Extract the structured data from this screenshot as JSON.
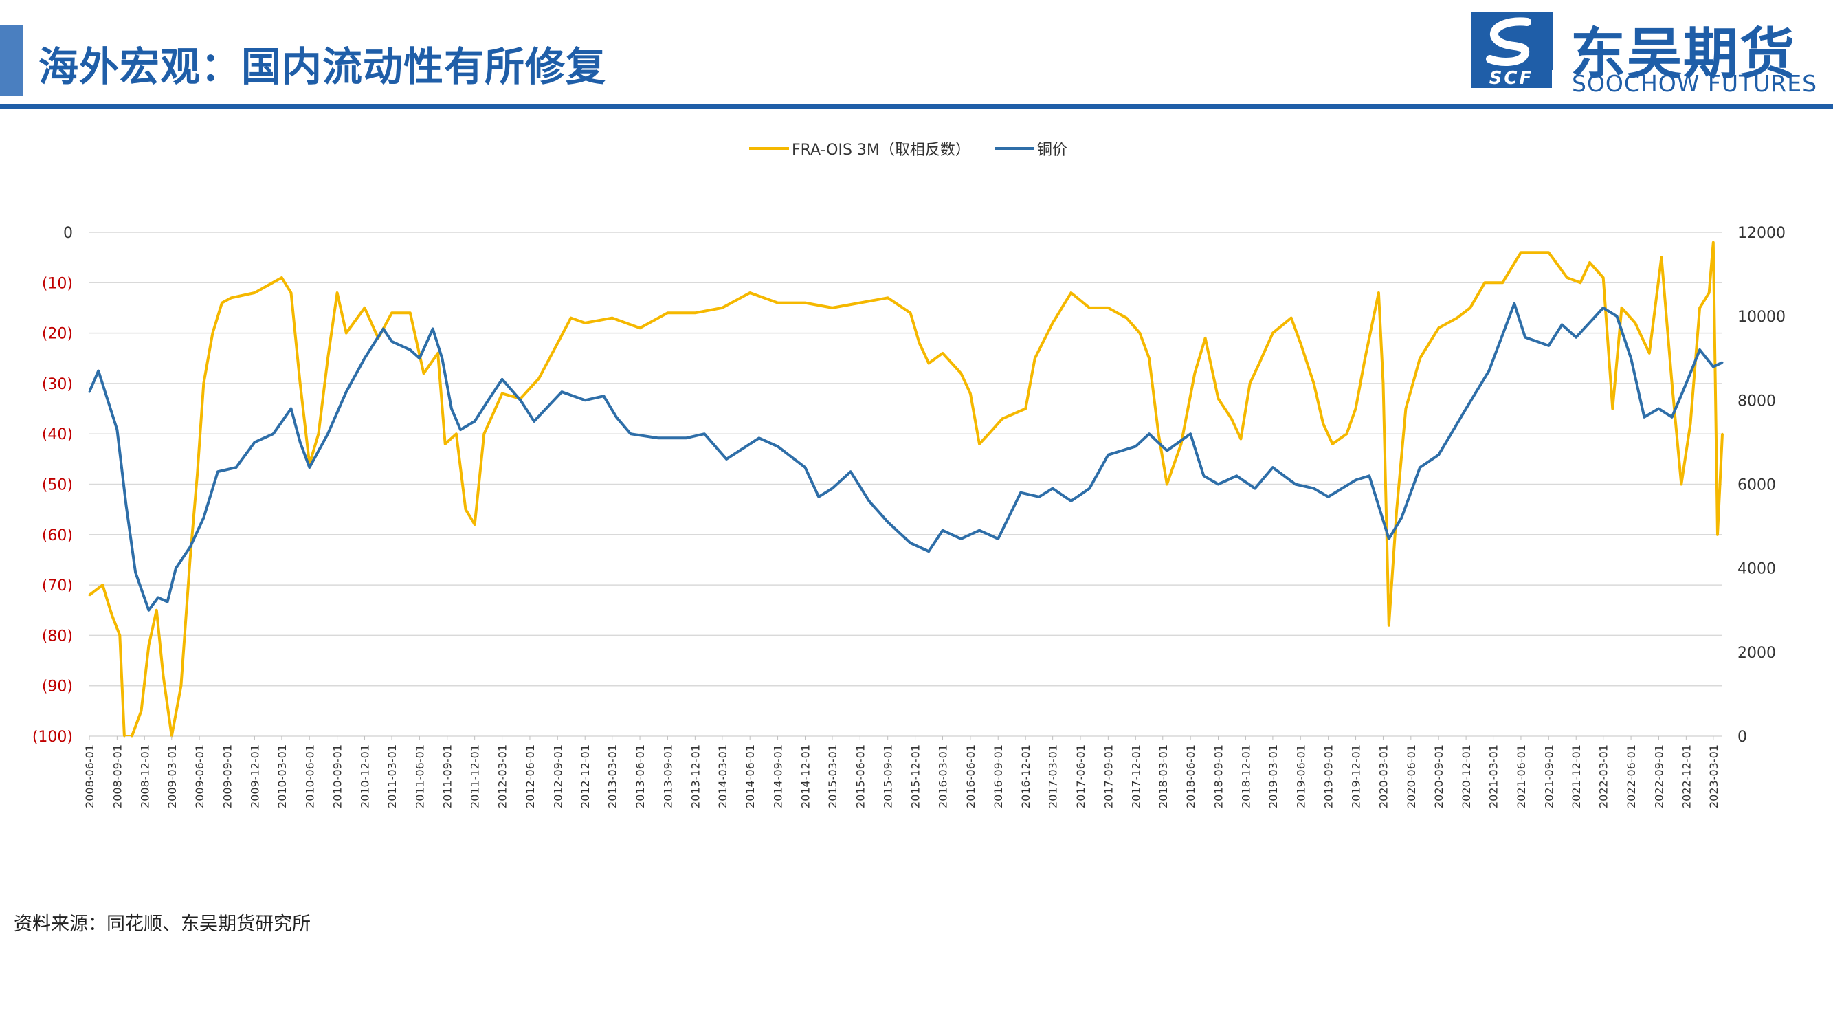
{
  "header": {
    "title": "海外宏观：国内流动性有所修复",
    "logo_cn": "东吴期货",
    "logo_en": "SOOCHOW FUTURES",
    "logo_abbr": "SCF"
  },
  "colors": {
    "brand": "#1f5ea8",
    "fra_series": "#f5b800",
    "copper_series": "#2e6ea8",
    "left_axis_text": "#c00000",
    "gridline": "#d9d9d9"
  },
  "legend": {
    "fra_label": "FRA-OIS 3M（取相反数）",
    "copper_label": "铜价"
  },
  "source": "资料来源：同花顺、东吴期货研究所",
  "chart_data": {
    "type": "line",
    "grid": true,
    "legend_position": "top",
    "x_range": [
      "2008-06-01",
      "2023-03-31"
    ],
    "x_tick_labels": [
      "2008-06-01",
      "2008-09-01",
      "2008-12-01",
      "2009-03-01",
      "2009-06-01",
      "2009-09-01",
      "2009-12-01",
      "2010-03-01",
      "2010-06-01",
      "2010-09-01",
      "2010-12-01",
      "2011-03-01",
      "2011-06-01",
      "2011-09-01",
      "2011-12-01",
      "2012-03-01",
      "2012-06-01",
      "2012-09-01",
      "2012-12-01",
      "2013-03-01",
      "2013-06-01",
      "2013-09-01",
      "2013-12-01",
      "2014-03-01",
      "2014-06-01",
      "2014-09-01",
      "2014-12-01",
      "2015-03-01",
      "2015-06-01",
      "2015-09-01",
      "2015-12-01",
      "2016-03-01",
      "2016-06-01",
      "2016-09-01",
      "2016-12-01",
      "2017-03-01",
      "2017-06-01",
      "2017-09-01",
      "2017-12-01",
      "2018-03-01",
      "2018-06-01",
      "2018-09-01",
      "2018-12-01",
      "2019-03-01",
      "2019-06-01",
      "2019-09-01",
      "2019-12-01",
      "2020-03-01",
      "2020-06-01",
      "2020-09-01",
      "2020-12-01",
      "2021-03-01",
      "2021-06-01",
      "2021-09-01",
      "2021-12-01",
      "2022-03-01",
      "2022-06-01",
      "2022-09-01",
      "2022-12-01",
      "2023-03-01"
    ],
    "y_left": {
      "min": -100,
      "max": 0,
      "tick_labels": [
        "0",
        "(10)",
        "(20)",
        "(30)",
        "(40)",
        "(50)",
        "(60)",
        "(70)",
        "(80)",
        "(90)",
        "(100)"
      ]
    },
    "y_right": {
      "min": 0,
      "max": 12000,
      "tick_labels": [
        "12000",
        "10000",
        "8000",
        "6000",
        "4000",
        "2000",
        "0"
      ]
    },
    "series": [
      {
        "name": "FRA-OIS 3M（取相反数）",
        "axis": "left",
        "points": [
          [
            "2008-06-01",
            -72
          ],
          [
            "2008-07-15",
            -70
          ],
          [
            "2008-08-15",
            -76
          ],
          [
            "2008-09-10",
            -80
          ],
          [
            "2008-09-25",
            -100
          ],
          [
            "2008-10-20",
            -100
          ],
          [
            "2008-11-20",
            -95
          ],
          [
            "2008-12-15",
            -82
          ],
          [
            "2009-01-10",
            -75
          ],
          [
            "2009-02-01",
            -88
          ],
          [
            "2009-03-01",
            -100
          ],
          [
            "2009-04-01",
            -90
          ],
          [
            "2009-05-01",
            -65
          ],
          [
            "2009-05-25",
            -48
          ],
          [
            "2009-06-15",
            -30
          ],
          [
            "2009-07-15",
            -20
          ],
          [
            "2009-08-15",
            -14
          ],
          [
            "2009-09-15",
            -13
          ],
          [
            "2009-12-01",
            -12
          ],
          [
            "2010-03-01",
            -9
          ],
          [
            "2010-04-01",
            -12
          ],
          [
            "2010-05-01",
            -30
          ],
          [
            "2010-06-01",
            -46
          ],
          [
            "2010-07-01",
            -40
          ],
          [
            "2010-08-01",
            -25
          ],
          [
            "2010-09-01",
            -12
          ],
          [
            "2010-10-01",
            -20
          ],
          [
            "2010-12-01",
            -15
          ],
          [
            "2011-01-15",
            -21
          ],
          [
            "2011-03-01",
            -16
          ],
          [
            "2011-05-01",
            -16
          ],
          [
            "2011-06-15",
            -28
          ],
          [
            "2011-08-01",
            -24
          ],
          [
            "2011-08-25",
            -42
          ],
          [
            "2011-10-01",
            -40
          ],
          [
            "2011-11-01",
            -55
          ],
          [
            "2011-12-01",
            -58
          ],
          [
            "2012-01-01",
            -40
          ],
          [
            "2012-03-01",
            -32
          ],
          [
            "2012-05-01",
            -33
          ],
          [
            "2012-07-01",
            -29
          ],
          [
            "2012-09-01",
            -22
          ],
          [
            "2012-10-15",
            -17
          ],
          [
            "2012-12-01",
            -18
          ],
          [
            "2013-03-01",
            -17
          ],
          [
            "2013-06-01",
            -19
          ],
          [
            "2013-09-01",
            -16
          ],
          [
            "2013-12-01",
            -16
          ],
          [
            "2014-03-01",
            -15
          ],
          [
            "2014-06-01",
            -12
          ],
          [
            "2014-09-01",
            -14
          ],
          [
            "2014-12-01",
            -14
          ],
          [
            "2015-03-01",
            -15
          ],
          [
            "2015-06-01",
            -14
          ],
          [
            "2015-09-01",
            -13
          ],
          [
            "2015-11-15",
            -16
          ],
          [
            "2015-12-15",
            -22
          ],
          [
            "2016-01-15",
            -26
          ],
          [
            "2016-03-01",
            -24
          ],
          [
            "2016-05-01",
            -28
          ],
          [
            "2016-06-01",
            -32
          ],
          [
            "2016-07-01",
            -42
          ],
          [
            "2016-08-01",
            -40
          ],
          [
            "2016-09-15",
            -37
          ],
          [
            "2016-12-01",
            -35
          ],
          [
            "2017-01-01",
            -25
          ],
          [
            "2017-03-01",
            -18
          ],
          [
            "2017-05-01",
            -12
          ],
          [
            "2017-07-01",
            -15
          ],
          [
            "2017-09-01",
            -15
          ],
          [
            "2017-11-01",
            -17
          ],
          [
            "2017-12-15",
            -20
          ],
          [
            "2018-01-15",
            -25
          ],
          [
            "2018-02-15",
            -40
          ],
          [
            "2018-03-15",
            -50
          ],
          [
            "2018-05-01",
            -42
          ],
          [
            "2018-06-15",
            -28
          ],
          [
            "2018-07-20",
            -21
          ],
          [
            "2018-09-01",
            -33
          ],
          [
            "2018-10-15",
            -37
          ],
          [
            "2018-11-15",
            -41
          ],
          [
            "2018-12-15",
            -30
          ],
          [
            "2019-01-15",
            -26
          ],
          [
            "2019-03-01",
            -20
          ],
          [
            "2019-05-01",
            -17
          ],
          [
            "2019-06-01",
            -22
          ],
          [
            "2019-07-15",
            -30
          ],
          [
            "2019-08-15",
            -38
          ],
          [
            "2019-09-15",
            -42
          ],
          [
            "2019-11-01",
            -40
          ],
          [
            "2019-12-01",
            -35
          ],
          [
            "2020-01-01",
            -25
          ],
          [
            "2020-02-15",
            -12
          ],
          [
            "2020-03-01",
            -30
          ],
          [
            "2020-03-20",
            -78
          ],
          [
            "2020-04-15",
            -55
          ],
          [
            "2020-05-15",
            -35
          ],
          [
            "2020-07-01",
            -25
          ],
          [
            "2020-09-01",
            -19
          ],
          [
            "2020-11-01",
            -17
          ],
          [
            "2020-12-15",
            -15
          ],
          [
            "2021-02-01",
            -10
          ],
          [
            "2021-04-01",
            -10
          ],
          [
            "2021-06-01",
            -4
          ],
          [
            "2021-09-01",
            -4
          ],
          [
            "2021-11-01",
            -9
          ],
          [
            "2021-12-15",
            -10
          ],
          [
            "2022-01-15",
            -6
          ],
          [
            "2022-03-01",
            -9
          ],
          [
            "2022-04-01",
            -35
          ],
          [
            "2022-05-01",
            -15
          ],
          [
            "2022-06-15",
            -18
          ],
          [
            "2022-08-01",
            -24
          ],
          [
            "2022-09-10",
            -5
          ],
          [
            "2022-10-15",
            -30
          ],
          [
            "2022-11-15",
            -50
          ],
          [
            "2022-12-15",
            -38
          ],
          [
            "2023-01-15",
            -15
          ],
          [
            "2023-02-15",
            -12
          ],
          [
            "2023-03-01",
            -2
          ],
          [
            "2023-03-15",
            -60
          ],
          [
            "2023-03-31",
            -40
          ]
        ]
      },
      {
        "name": "铜价",
        "axis": "right",
        "points": [
          [
            "2008-06-01",
            8200
          ],
          [
            "2008-07-01",
            8700
          ],
          [
            "2008-08-01",
            8000
          ],
          [
            "2008-09-01",
            7300
          ],
          [
            "2008-10-01",
            5500
          ],
          [
            "2008-11-01",
            3900
          ],
          [
            "2008-12-15",
            3000
          ],
          [
            "2009-01-15",
            3300
          ],
          [
            "2009-02-15",
            3200
          ],
          [
            "2009-03-15",
            4000
          ],
          [
            "2009-05-01",
            4500
          ],
          [
            "2009-06-15",
            5200
          ],
          [
            "2009-08-01",
            6300
          ],
          [
            "2009-10-01",
            6400
          ],
          [
            "2009-12-01",
            7000
          ],
          [
            "2010-02-01",
            7200
          ],
          [
            "2010-04-01",
            7800
          ],
          [
            "2010-05-01",
            7000
          ],
          [
            "2010-06-01",
            6400
          ],
          [
            "2010-08-01",
            7200
          ],
          [
            "2010-10-01",
            8200
          ],
          [
            "2010-12-01",
            9000
          ],
          [
            "2011-02-01",
            9700
          ],
          [
            "2011-03-01",
            9400
          ],
          [
            "2011-05-01",
            9200
          ],
          [
            "2011-06-01",
            9000
          ],
          [
            "2011-07-15",
            9700
          ],
          [
            "2011-08-15",
            9000
          ],
          [
            "2011-09-15",
            7800
          ],
          [
            "2011-10-15",
            7300
          ],
          [
            "2011-12-01",
            7500
          ],
          [
            "2012-01-15",
            8000
          ],
          [
            "2012-03-01",
            8500
          ],
          [
            "2012-05-01",
            8000
          ],
          [
            "2012-06-15",
            7500
          ],
          [
            "2012-09-15",
            8200
          ],
          [
            "2012-12-01",
            8000
          ],
          [
            "2013-02-01",
            8100
          ],
          [
            "2013-03-15",
            7600
          ],
          [
            "2013-05-01",
            7200
          ],
          [
            "2013-08-01",
            7100
          ],
          [
            "2013-11-01",
            7100
          ],
          [
            "2014-01-01",
            7200
          ],
          [
            "2014-03-15",
            6600
          ],
          [
            "2014-07-01",
            7100
          ],
          [
            "2014-09-01",
            6900
          ],
          [
            "2014-12-01",
            6400
          ],
          [
            "2015-01-15",
            5700
          ],
          [
            "2015-03-01",
            5900
          ],
          [
            "2015-05-01",
            6300
          ],
          [
            "2015-07-01",
            5600
          ],
          [
            "2015-09-01",
            5100
          ],
          [
            "2015-11-15",
            4600
          ],
          [
            "2016-01-15",
            4400
          ],
          [
            "2016-03-01",
            4900
          ],
          [
            "2016-05-01",
            4700
          ],
          [
            "2016-07-01",
            4900
          ],
          [
            "2016-09-01",
            4700
          ],
          [
            "2016-11-15",
            5800
          ],
          [
            "2017-01-15",
            5700
          ],
          [
            "2017-03-01",
            5900
          ],
          [
            "2017-05-01",
            5600
          ],
          [
            "2017-07-01",
            5900
          ],
          [
            "2017-09-01",
            6700
          ],
          [
            "2017-12-01",
            6900
          ],
          [
            "2018-01-15",
            7200
          ],
          [
            "2018-03-15",
            6800
          ],
          [
            "2018-06-01",
            7200
          ],
          [
            "2018-07-15",
            6200
          ],
          [
            "2018-09-01",
            6000
          ],
          [
            "2018-11-01",
            6200
          ],
          [
            "2019-01-01",
            5900
          ],
          [
            "2019-03-01",
            6400
          ],
          [
            "2019-05-15",
            6000
          ],
          [
            "2019-07-15",
            5900
          ],
          [
            "2019-09-01",
            5700
          ],
          [
            "2019-12-01",
            6100
          ],
          [
            "2020-01-15",
            6200
          ],
          [
            "2020-03-20",
            4700
          ],
          [
            "2020-05-01",
            5200
          ],
          [
            "2020-07-01",
            6400
          ],
          [
            "2020-09-01",
            6700
          ],
          [
            "2020-12-01",
            7800
          ],
          [
            "2021-02-15",
            8700
          ],
          [
            "2021-05-10",
            10300
          ],
          [
            "2021-06-15",
            9500
          ],
          [
            "2021-09-01",
            9300
          ],
          [
            "2021-10-15",
            9800
          ],
          [
            "2021-12-01",
            9500
          ],
          [
            "2022-03-01",
            10200
          ],
          [
            "2022-04-15",
            10000
          ],
          [
            "2022-06-01",
            9000
          ],
          [
            "2022-07-15",
            7600
          ],
          [
            "2022-09-01",
            7800
          ],
          [
            "2022-10-15",
            7600
          ],
          [
            "2022-12-01",
            8400
          ],
          [
            "2023-01-15",
            9200
          ],
          [
            "2023-03-01",
            8800
          ],
          [
            "2023-03-31",
            8900
          ]
        ]
      }
    ]
  }
}
